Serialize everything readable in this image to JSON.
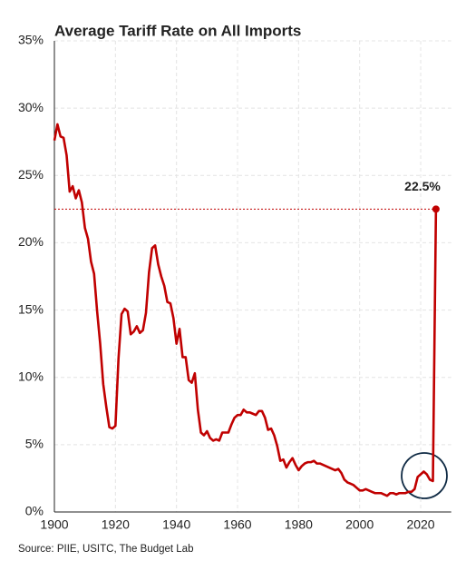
{
  "chart_data": {
    "type": "line",
    "title": "Average Tariff Rate on All Imports",
    "source": "Source: PIIE, USITC, The Budget Lab",
    "color": "#c00000",
    "grid": true,
    "x": [
      1900,
      1901,
      1902,
      1903,
      1904,
      1905,
      1906,
      1907,
      1908,
      1909,
      1910,
      1911,
      1912,
      1913,
      1914,
      1915,
      1916,
      1917,
      1918,
      1919,
      1920,
      1921,
      1922,
      1923,
      1924,
      1925,
      1926,
      1927,
      1928,
      1929,
      1930,
      1931,
      1932,
      1933,
      1934,
      1935,
      1936,
      1937,
      1938,
      1939,
      1940,
      1941,
      1942,
      1943,
      1944,
      1945,
      1946,
      1947,
      1948,
      1949,
      1950,
      1951,
      1952,
      1953,
      1954,
      1955,
      1956,
      1957,
      1958,
      1959,
      1960,
      1961,
      1962,
      1963,
      1964,
      1965,
      1966,
      1967,
      1968,
      1969,
      1970,
      1971,
      1972,
      1973,
      1974,
      1975,
      1976,
      1977,
      1978,
      1979,
      1980,
      1981,
      1982,
      1983,
      1984,
      1985,
      1986,
      1987,
      1988,
      1989,
      1990,
      1991,
      1992,
      1993,
      1994,
      1995,
      1996,
      1997,
      1998,
      1999,
      2000,
      2001,
      2002,
      2003,
      2004,
      2005,
      2006,
      2007,
      2008,
      2009,
      2010,
      2011,
      2012,
      2013,
      2014,
      2015,
      2016,
      2017,
      2018,
      2019,
      2020,
      2021,
      2022,
      2023,
      2024,
      2025
    ],
    "values": [
      27.6,
      28.8,
      27.9,
      27.8,
      26.5,
      23.8,
      24.2,
      23.3,
      23.9,
      23.0,
      21.1,
      20.3,
      18.6,
      17.7,
      14.9,
      12.5,
      9.5,
      7.8,
      6.3,
      6.2,
      6.4,
      11.4,
      14.7,
      15.1,
      14.9,
      13.2,
      13.4,
      13.8,
      13.3,
      13.5,
      14.8,
      17.8,
      19.6,
      19.8,
      18.4,
      17.5,
      16.8,
      15.6,
      15.5,
      14.4,
      12.5,
      13.6,
      11.5,
      11.5,
      9.8,
      9.6,
      10.3,
      7.6,
      5.9,
      5.7,
      6.0,
      5.5,
      5.3,
      5.4,
      5.3,
      5.9,
      5.9,
      5.9,
      6.5,
      7.0,
      7.2,
      7.2,
      7.6,
      7.4,
      7.4,
      7.3,
      7.2,
      7.5,
      7.5,
      7.0,
      6.1,
      6.2,
      5.7,
      4.9,
      3.8,
      3.9,
      3.3,
      3.7,
      4.0,
      3.5,
      3.1,
      3.4,
      3.6,
      3.7,
      3.7,
      3.8,
      3.6,
      3.6,
      3.5,
      3.4,
      3.3,
      3.2,
      3.1,
      3.2,
      2.9,
      2.4,
      2.2,
      2.1,
      2.0,
      1.8,
      1.6,
      1.6,
      1.7,
      1.6,
      1.5,
      1.4,
      1.4,
      1.4,
      1.3,
      1.2,
      1.4,
      1.4,
      1.3,
      1.4,
      1.4,
      1.4,
      1.5,
      1.5,
      1.7,
      2.6,
      2.8,
      3.0,
      2.8,
      2.4,
      2.3,
      22.5
    ],
    "value_labels": [
      null,
      null,
      null,
      null,
      null,
      null,
      null,
      null,
      null,
      null,
      null,
      null,
      null,
      null,
      null,
      null,
      null,
      null,
      null,
      null,
      null,
      null,
      null,
      null,
      null,
      null,
      null,
      null,
      null,
      null,
      null,
      null,
      null,
      null,
      null,
      null,
      null,
      null,
      null,
      null,
      null,
      null,
      null,
      null,
      null,
      null,
      null,
      null,
      null,
      null,
      null,
      null,
      null,
      null,
      null,
      null,
      null,
      null,
      null,
      null,
      null,
      null,
      null,
      null,
      null,
      null,
      null,
      null,
      null,
      null,
      null,
      null,
      null,
      null,
      null,
      null,
      null,
      null,
      null,
      null,
      null,
      null,
      null,
      null,
      null,
      null,
      null,
      null,
      null,
      null,
      null,
      null,
      null,
      null,
      null,
      null,
      null,
      null,
      null,
      null,
      null,
      null,
      null,
      null,
      null,
      null,
      null,
      null,
      null,
      null,
      null,
      null,
      null,
      null,
      null,
      null,
      null,
      null,
      null,
      null,
      null,
      null,
      null,
      null,
      null,
      "22.5%"
    ],
    "xlim": [
      1900,
      2030
    ],
    "xticks": [
      1900,
      1920,
      1940,
      1960,
      1980,
      2000,
      2020
    ],
    "ylim": [
      0,
      35
    ],
    "yticks": [
      {
        "value": 0,
        "label": "0%"
      },
      {
        "value": 5,
        "label": "5%"
      },
      {
        "value": 10,
        "label": "10%"
      },
      {
        "value": 15,
        "label": "15%"
      },
      {
        "value": 20,
        "label": "20%"
      },
      {
        "value": 25,
        "label": "25%"
      },
      {
        "value": 30,
        "label": "30%"
      },
      {
        "value": 35,
        "label": "35%"
      }
    ]
  }
}
